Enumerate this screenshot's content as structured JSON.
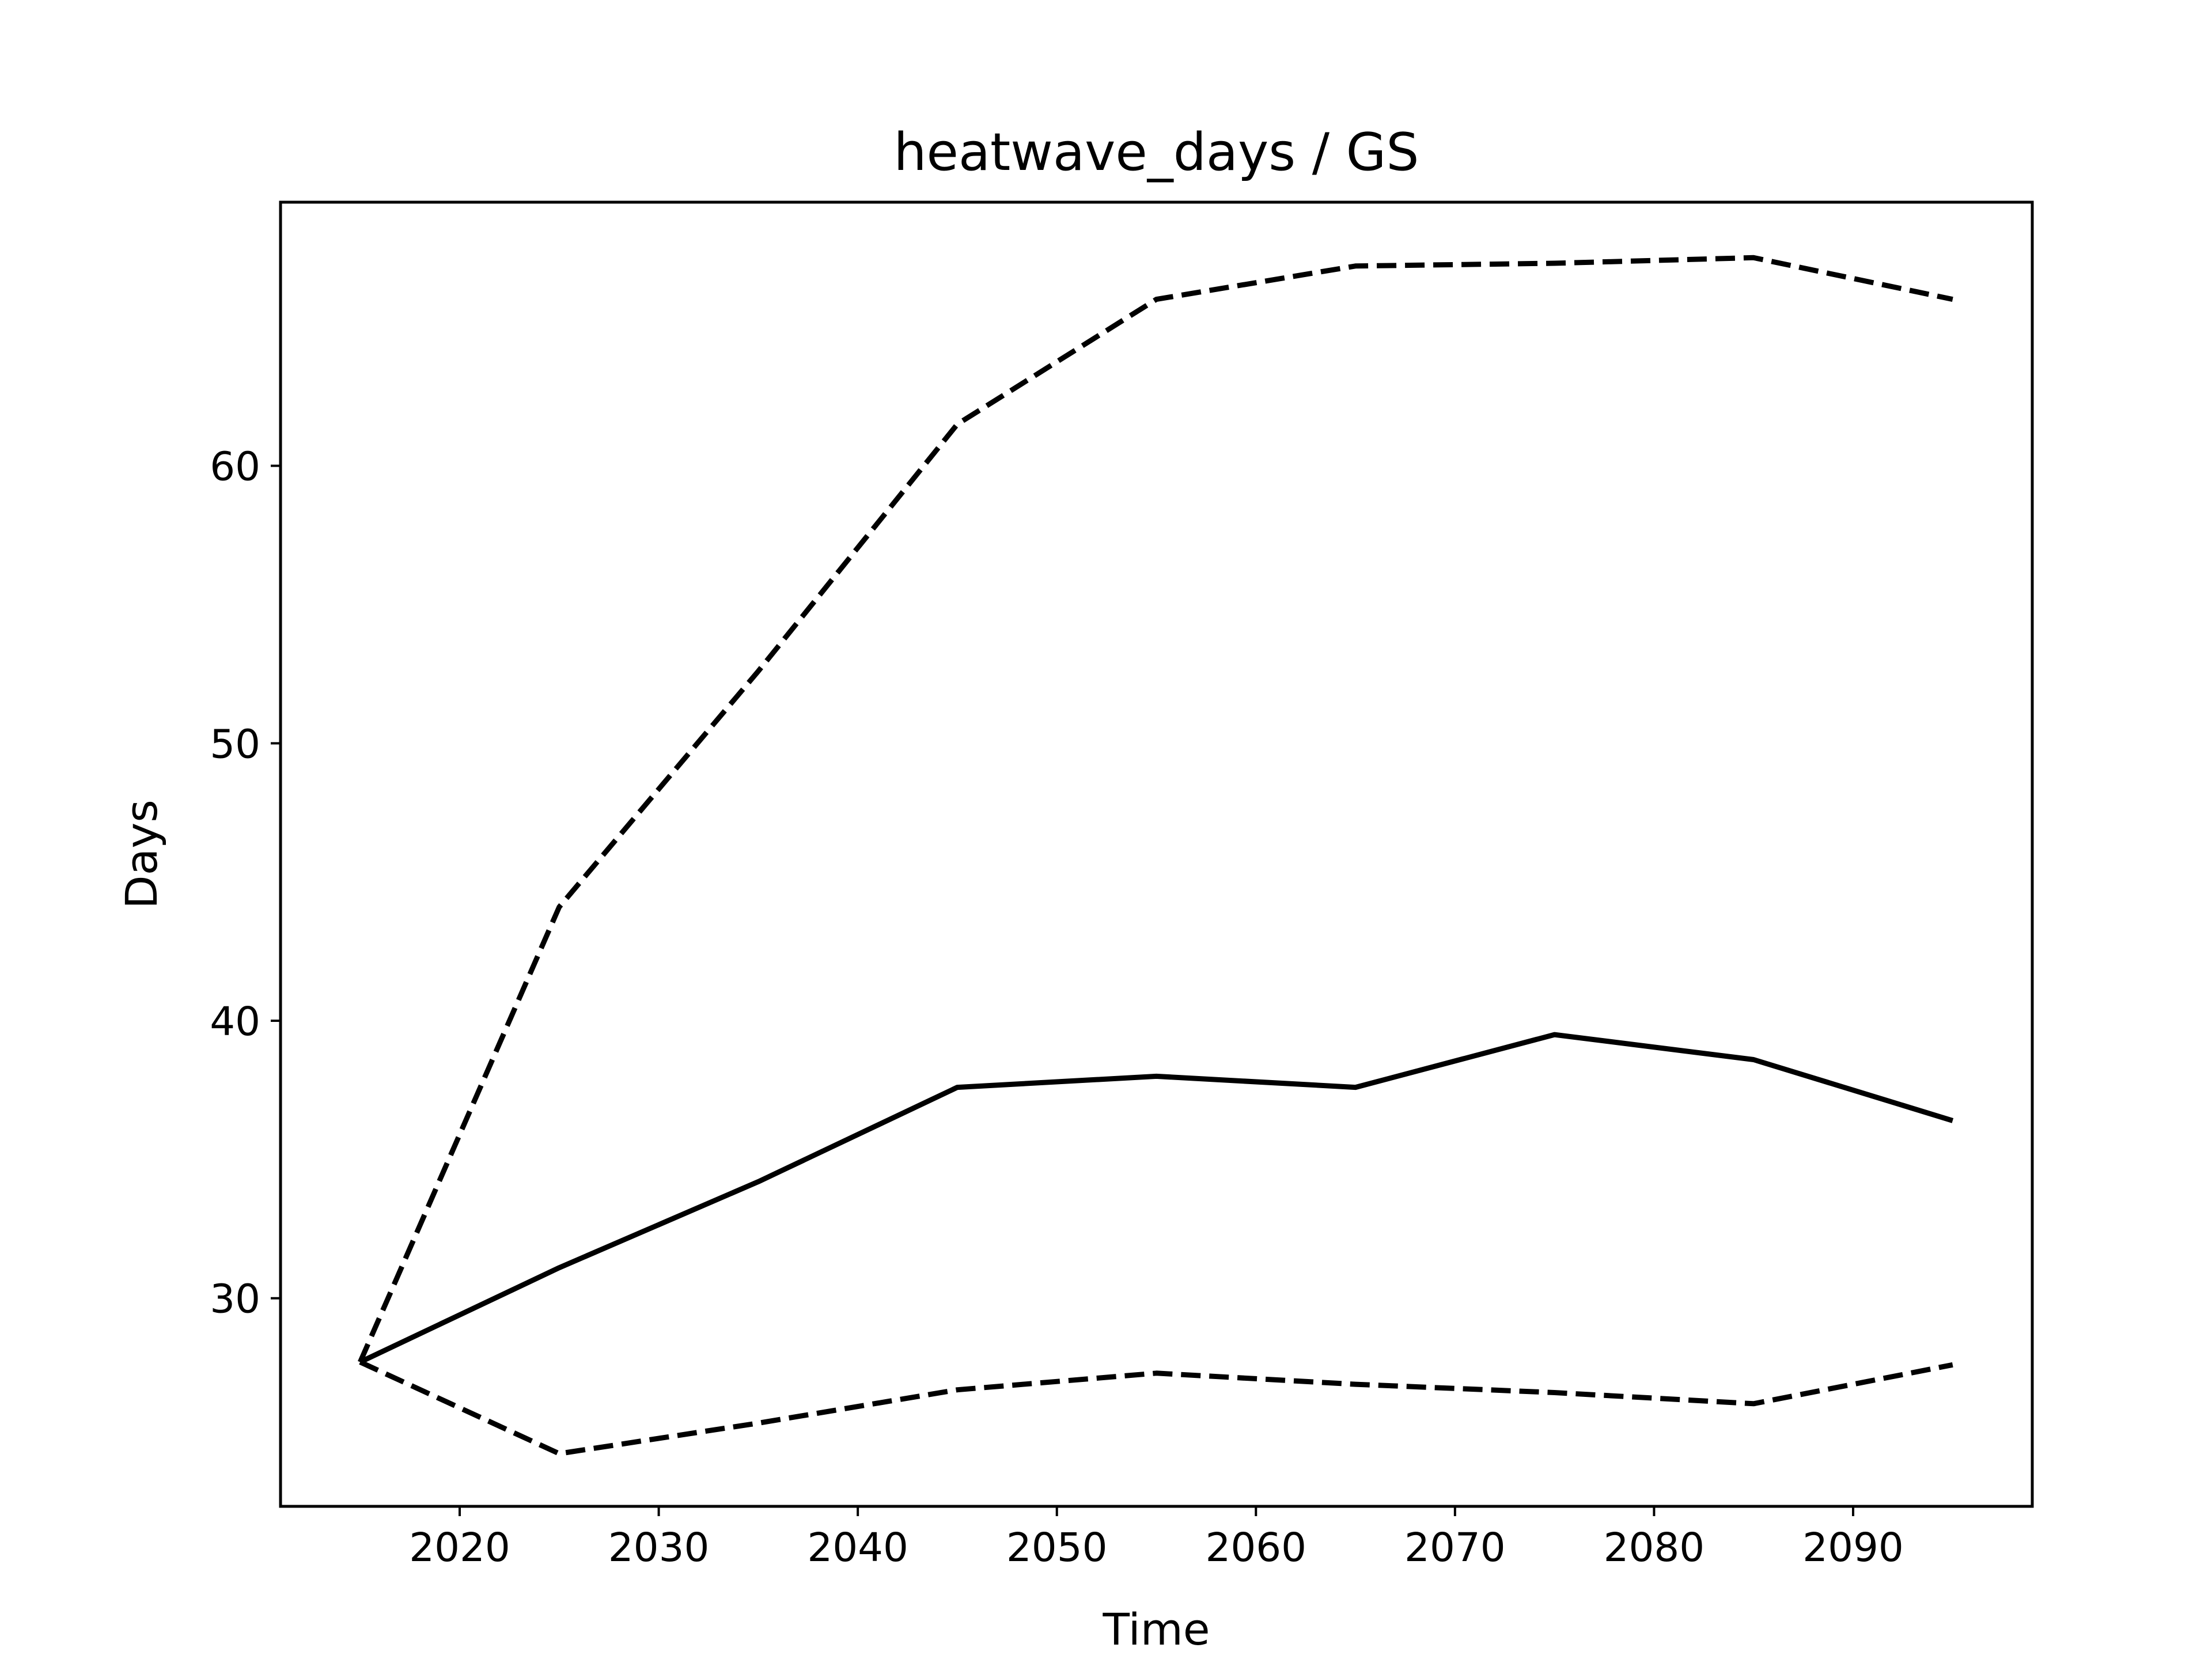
{
  "chart_data": {
    "type": "line",
    "title": "heatwave_days / GS",
    "xlabel": "Time",
    "ylabel": "Days",
    "xlim": [
      2011,
      2099
    ],
    "ylim": [
      22.5,
      69.5
    ],
    "xticks": [
      2020,
      2030,
      2040,
      2050,
      2060,
      2070,
      2080,
      2090
    ],
    "yticks": [
      30,
      40,
      50,
      60
    ],
    "grid": false,
    "legend": false,
    "x": [
      2015,
      2025,
      2035,
      2045,
      2055,
      2065,
      2075,
      2085,
      2095
    ],
    "series": [
      {
        "style": "dashed",
        "color": "#000000",
        "values": [
          27.7,
          44.1,
          52.6,
          61.5,
          66.0,
          67.2,
          67.3,
          67.5,
          66.0
        ]
      },
      {
        "style": "solid",
        "color": "#000000",
        "values": [
          27.7,
          31.1,
          34.2,
          37.6,
          38.0,
          37.6,
          39.5,
          38.6,
          36.4
        ]
      },
      {
        "style": "dashed",
        "color": "#000000",
        "values": [
          27.7,
          24.4,
          25.5,
          26.7,
          27.3,
          26.9,
          26.6,
          26.2,
          27.6
        ]
      }
    ]
  }
}
